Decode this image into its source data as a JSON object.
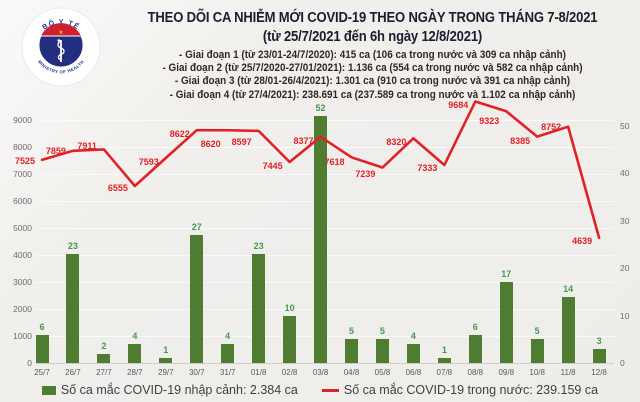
{
  "logo": {
    "top_text": "BỘ Y TẾ",
    "bottom_text": "MINISTRY OF HEALTH"
  },
  "header": {
    "title": "THEO DÕI CA NHIỄM MỚI COVID-19 THEO NGÀY TRONG THÁNG 7-8/2021",
    "subtitle": "(từ 25/7/2021 đến 6h ngày 12/8/2021)",
    "bullets": [
      "- Giai đoạn 1 (từ 23/01-24/7/2020): 415 ca (106 ca trong nước và 309 ca nhập cảnh)",
      "- Giai đoạn 2 (từ 25/7/2020-27/01/2021): 1.136 ca (554 ca trong nước và 582 ca nhập cảnh)",
      "- Giai đoạn 3 (từ 28/01-26/4/2021): 1.301 ca (910 ca trong nước và 391 ca nhập cảnh)",
      "- Giai đoạn 4 (từ 27/4/2021): 238.691 ca (237.589 ca trong nước và 1.102 ca nhập cảnh)"
    ]
  },
  "chart_data": {
    "type": "combo-bar-line",
    "categories": [
      "25/7",
      "26/7",
      "27/7",
      "28/7",
      "29/7",
      "30/7",
      "31/7",
      "01/8",
      "02/8",
      "03/8",
      "04/8",
      "05/8",
      "06/8",
      "07/8",
      "08/8",
      "09/8",
      "10/8",
      "11/8",
      "12/8"
    ],
    "series": [
      {
        "name": "Số ca mắc COVID-19 nhập cảnh",
        "type": "bar",
        "axis": "right",
        "color": "#4e7d31",
        "values": [
          6,
          23,
          2,
          4,
          1,
          27,
          4,
          23,
          10,
          52,
          5,
          5,
          4,
          1,
          6,
          17,
          5,
          14,
          3
        ]
      },
      {
        "name": "Số ca mắc COVID-19 trong nước",
        "type": "line",
        "axis": "left",
        "color": "#e02128",
        "values": [
          7525,
          7859,
          7911,
          6555,
          7593,
          8622,
          8620,
          8597,
          7445,
          8377,
          7618,
          7239,
          8320,
          7333,
          9684,
          9323,
          8385,
          8752,
          4639
        ]
      }
    ],
    "left_axis": {
      "ticks": [
        0,
        1000,
        2000,
        3000,
        4000,
        5000,
        6000,
        7000,
        8000,
        9000
      ],
      "min": 0,
      "max": 9000
    },
    "right_axis": {
      "ticks": [
        0,
        10,
        20,
        30,
        40,
        50
      ],
      "min": 0,
      "max": 50
    },
    "grid": true,
    "legend_position": "bottom"
  },
  "legend": [
    {
      "label": "Số ca mắc COVID-19 nhập cảnh: 2.384 ca",
      "total": "2.384",
      "color": "#4e7d31",
      "marker": "rect"
    },
    {
      "label": "Số ca mắc COVID-19 trong nước: 239.159 ca",
      "total": "239.159",
      "color": "#e02128",
      "marker": "line"
    }
  ]
}
